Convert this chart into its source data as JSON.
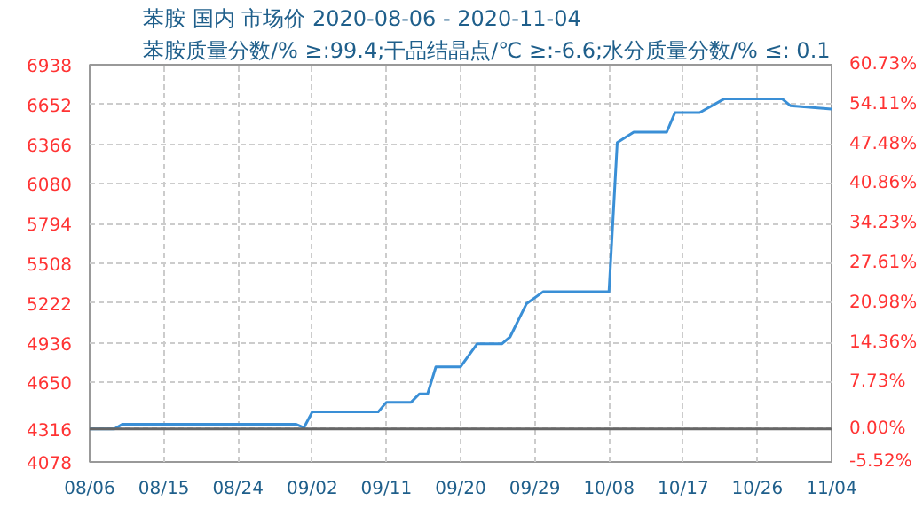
{
  "chart_data": {
    "type": "line",
    "title": "苯胺 国内 市场价 2020-08-06 - 2020-11-04",
    "subtitle": "苯胺质量分数/% ≥:99.4;干品结晶点/℃  ≥:-6.6;水分质量分数/%  ≤: 0.1",
    "x": [
      "2020-08-06",
      "2020-08-09",
      "2020-08-10",
      "2020-08-31",
      "2020-09-01",
      "2020-09-02",
      "2020-09-10",
      "2020-09-11",
      "2020-09-14",
      "2020-09-15",
      "2020-09-16",
      "2020-09-17",
      "2020-09-20",
      "2020-09-22",
      "2020-09-25",
      "2020-09-26",
      "2020-09-28",
      "2020-09-30",
      "2020-10-08",
      "2020-10-09",
      "2020-10-11",
      "2020-10-15",
      "2020-10-16",
      "2020-10-19",
      "2020-10-22",
      "2020-10-29",
      "2020-10-30",
      "2020-11-04"
    ],
    "series": [
      {
        "color": "#3a8fd6",
        "values": [
          4316,
          4316,
          4350,
          4350,
          4325,
          4438,
          4438,
          4508,
          4508,
          4568,
          4568,
          4763,
          4763,
          4928,
          4928,
          4978,
          5218,
          5303,
          5303,
          6378,
          6453,
          6453,
          6593,
          6593,
          6693,
          6693,
          6643,
          6618
        ]
      }
    ],
    "xlim": [
      "2020-08-06",
      "2020-11-04"
    ],
    "xticks": [
      {
        "value": "2020-08-06",
        "label": "08/06"
      },
      {
        "value": "2020-08-15",
        "label": "08/15"
      },
      {
        "value": "2020-08-24",
        "label": "08/24"
      },
      {
        "value": "2020-09-02",
        "label": "09/02"
      },
      {
        "value": "2020-09-11",
        "label": "09/11"
      },
      {
        "value": "2020-09-20",
        "label": "09/20"
      },
      {
        "value": "2020-09-29",
        "label": "09/29"
      },
      {
        "value": "2020-10-08",
        "label": "10/08"
      },
      {
        "value": "2020-10-17",
        "label": "10/17"
      },
      {
        "value": "2020-10-26",
        "label": "10/26"
      },
      {
        "value": "2020-11-04",
        "label": "11/04"
      }
    ],
    "ylim": [
      4078,
      6938
    ],
    "yticks": [
      4078,
      4316,
      4650,
      4936,
      5222,
      5508,
      5794,
      6080,
      6366,
      6652,
      6938
    ],
    "y2lim": [
      -5.52,
      60.73
    ],
    "y2ticks": [
      {
        "value": -5.52,
        "label": "-5.52%"
      },
      {
        "value": 0,
        "label": "0.00%"
      },
      {
        "value": 7.73,
        "label": "7.73%"
      },
      {
        "value": 14.36,
        "label": "14.36%"
      },
      {
        "value": 20.98,
        "label": "20.98%"
      },
      {
        "value": 27.61,
        "label": "27.61%"
      },
      {
        "value": 34.23,
        "label": "34.23%"
      },
      {
        "value": 40.86,
        "label": "40.86%"
      },
      {
        "value": 47.48,
        "label": "47.48%"
      },
      {
        "value": 54.11,
        "label": "54.11%"
      },
      {
        "value": 60.73,
        "label": "60.73%"
      }
    ],
    "ref_lines": [
      {
        "axis": "y",
        "value": 4316,
        "color": "#666666"
      }
    ],
    "grid": true,
    "marker": "none",
    "line_style": "solid"
  }
}
